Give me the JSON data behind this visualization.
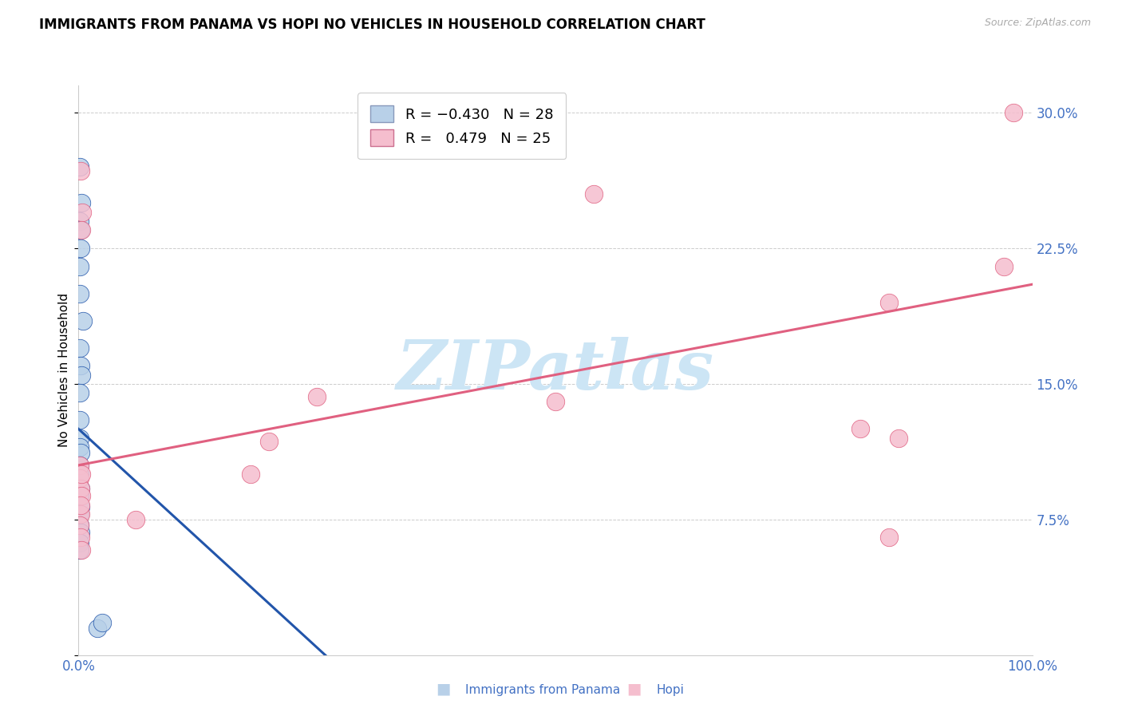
{
  "title": "IMMIGRANTS FROM PANAMA VS HOPI NO VEHICLES IN HOUSEHOLD CORRELATION CHART",
  "source": "Source: ZipAtlas.com",
  "ylabel": "No Vehicles in Household",
  "legend_blue_r": "-0.430",
  "legend_blue_n": "28",
  "legend_pink_r": "0.479",
  "legend_pink_n": "25",
  "legend_label_blue": "Immigrants from Panama",
  "legend_label_pink": "Hopi",
  "blue_color": "#b8d0e8",
  "pink_color": "#f5bece",
  "blue_line_color": "#2255aa",
  "pink_line_color": "#e06080",
  "watermark": "ZIPatlas",
  "watermark_color": "#cce5f5",
  "grid_color": "#cccccc",
  "tick_color": "#4472c4",
  "blue_points_x": [
    0.001,
    0.003,
    0.001,
    0.002,
    0.002,
    0.001,
    0.001,
    0.005,
    0.001,
    0.002,
    0.003,
    0.001,
    0.001,
    0.001,
    0.001,
    0.002,
    0.001,
    0.001,
    0.002,
    0.001,
    0.002,
    0.001,
    0.001,
    0.002,
    0.001,
    0.001,
    0.02,
    0.025
  ],
  "blue_points_y": [
    0.27,
    0.25,
    0.24,
    0.235,
    0.225,
    0.215,
    0.2,
    0.185,
    0.17,
    0.16,
    0.155,
    0.145,
    0.13,
    0.12,
    0.115,
    0.112,
    0.105,
    0.1,
    0.092,
    0.088,
    0.082,
    0.078,
    0.072,
    0.068,
    0.062,
    0.058,
    0.015,
    0.018
  ],
  "pink_points_x": [
    0.002,
    0.004,
    0.54,
    0.003,
    0.001,
    0.001,
    0.002,
    0.003,
    0.002,
    0.06,
    0.2,
    0.25,
    0.5,
    0.82,
    0.86,
    0.85,
    0.97,
    0.98,
    0.001,
    0.002,
    0.003,
    0.002,
    0.003,
    0.85,
    0.18
  ],
  "pink_points_y": [
    0.268,
    0.245,
    0.255,
    0.235,
    0.105,
    0.098,
    0.092,
    0.088,
    0.078,
    0.075,
    0.118,
    0.143,
    0.14,
    0.125,
    0.12,
    0.195,
    0.215,
    0.3,
    0.072,
    0.065,
    0.058,
    0.083,
    0.1,
    0.065,
    0.1
  ],
  "xlim": [
    0.0,
    1.0
  ],
  "ylim": [
    0.0,
    0.315
  ],
  "yticks": [
    0.0,
    0.075,
    0.15,
    0.225,
    0.3
  ],
  "ytick_labels": [
    "",
    "7.5%",
    "15.0%",
    "22.5%",
    "30.0%"
  ],
  "blue_line_x": [
    0.0,
    0.3
  ],
  "blue_line_y_start": 0.125,
  "blue_line_y_end": -0.02,
  "pink_line_x": [
    0.0,
    1.0
  ],
  "pink_line_y_start": 0.105,
  "pink_line_y_end": 0.205
}
